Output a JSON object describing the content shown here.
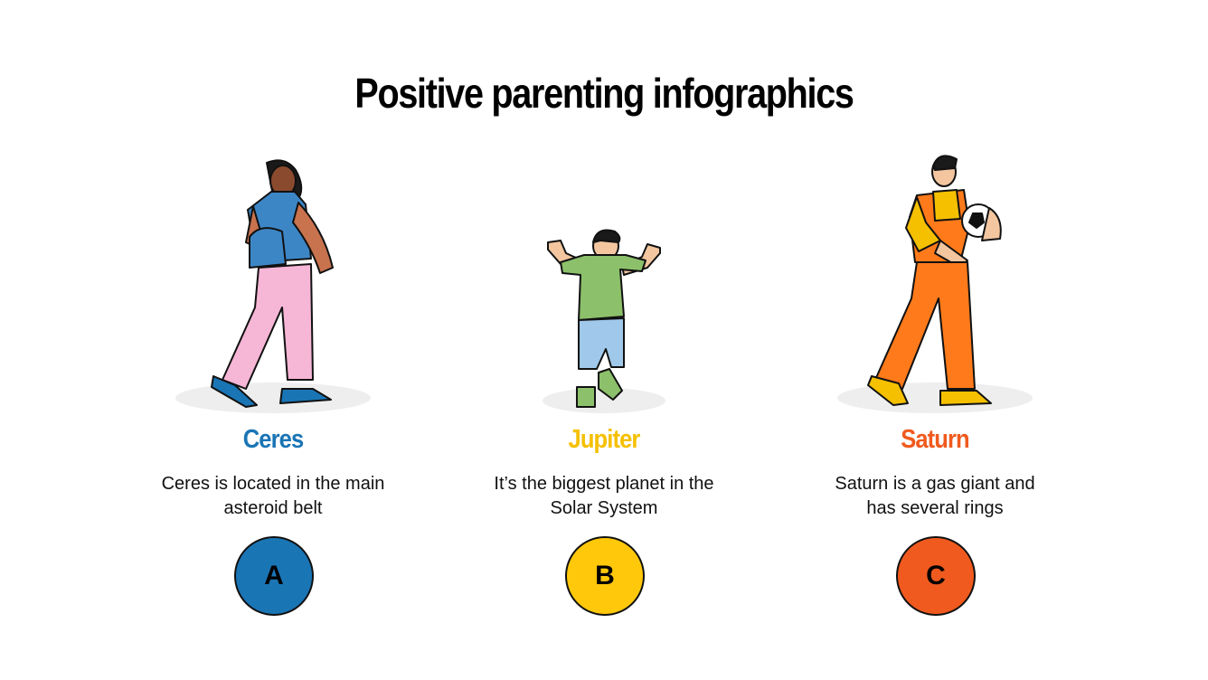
{
  "title": "Positive parenting infographics",
  "items": [
    {
      "name": "Ceres",
      "description": "Ceres is located in the main asteroid belt",
      "letter": "A"
    },
    {
      "name": "Jupiter",
      "description": "It’s the biggest planet in the Solar System",
      "letter": "B"
    },
    {
      "name": "Saturn",
      "description": "Saturn is a gas giant and has several rings",
      "letter": "C"
    }
  ]
}
